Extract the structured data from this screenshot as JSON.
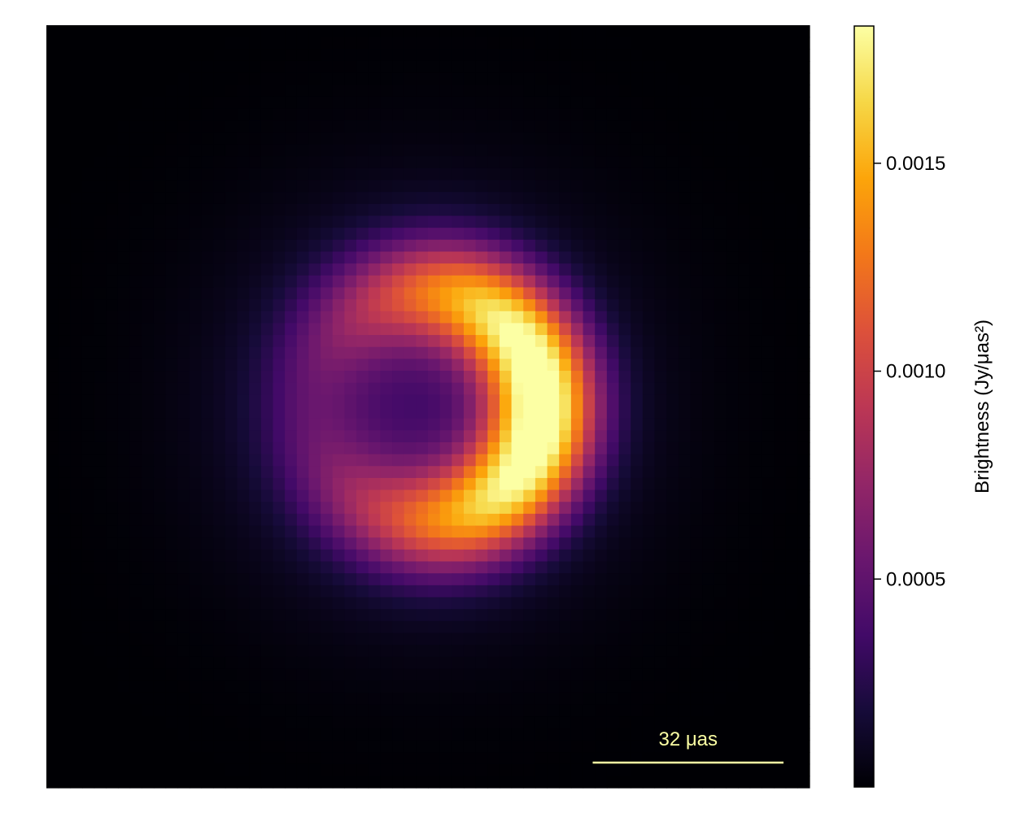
{
  "chart_data": {
    "type": "heatmap",
    "title": "",
    "xlabel": "",
    "ylabel": "",
    "description_units": "Jy/μas²",
    "grid": false,
    "pixels": [
      64,
      64
    ],
    "colormap": "inferno",
    "colorbar": {
      "label": "Brightness (Jy/μas²)",
      "range": [
        0.0,
        0.00183
      ],
      "ticks": [
        {
          "value": 0.0005,
          "label": "0.0005"
        },
        {
          "value": 0.001,
          "label": "0.0010"
        },
        {
          "value": 0.0015,
          "label": "0.0015"
        }
      ],
      "placement": "right"
    },
    "model": {
      "shape": "ring with bright crescent on right side",
      "ring_center": [
        0.0,
        0.0
      ],
      "ring_radius_uas": 19,
      "ring_width_uas": 8.5,
      "peak_brightness": 0.00183,
      "brightness_asymmetry": 0.72,
      "bright_side": "right",
      "halo_width_uas": 30,
      "halo_fraction": 0.2,
      "field_of_view_uas": 128
    },
    "scale_bar": {
      "label": "32 μas",
      "length_uas": 32,
      "placement": "bottom-right",
      "color": "#fcffa4"
    }
  }
}
